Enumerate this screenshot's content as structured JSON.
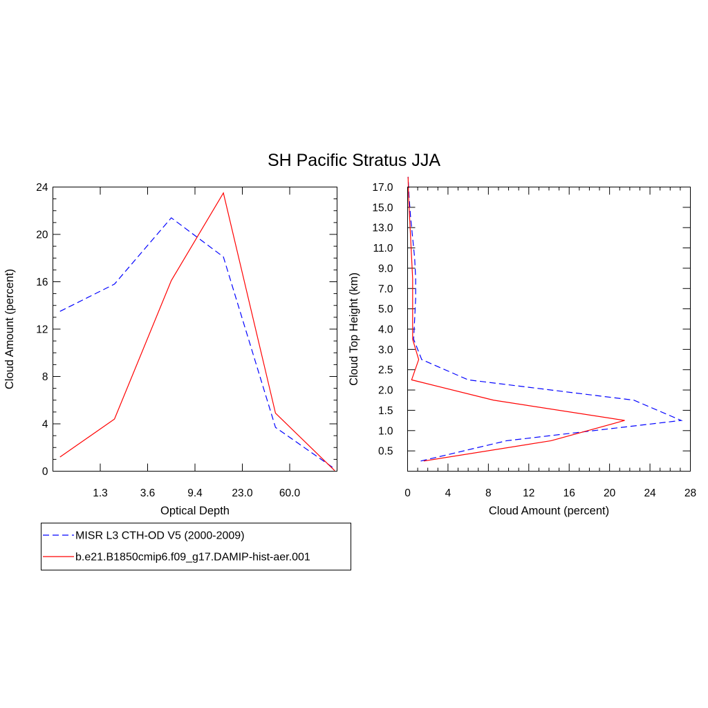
{
  "title": "SH Pacific Stratus JJA",
  "chart_data": [
    {
      "type": "line",
      "xlabel": "Optical Depth",
      "ylabel": "Cloud Amount (percent)",
      "x_tick_labels": [
        "1.3",
        "3.6",
        "9.4",
        "23.0",
        "60.0"
      ],
      "y_ticks": [
        0,
        4,
        8,
        12,
        16,
        20,
        24
      ],
      "ylim": [
        0,
        24
      ],
      "x": [
        0.15,
        1.3,
        2.5,
        3.6,
        4.7,
        5.95
      ],
      "series": [
        {
          "name": "MISR L3 CTH-OD V5 (2000-2009)",
          "color": "#0000ff",
          "dash": "dashed",
          "values": [
            13.5,
            15.8,
            21.4,
            18.1,
            3.7,
            0.2
          ]
        },
        {
          "name": "b.e21.B1850cmip6.f09_g17.DAMIP-hist-aer.001",
          "color": "#ff0000",
          "dash": "solid",
          "values": [
            1.2,
            4.4,
            16.1,
            23.5,
            4.9,
            0.05
          ]
        }
      ]
    },
    {
      "type": "line",
      "orientation": "horizontal",
      "xlabel": "Cloud Amount (percent)",
      "ylabel": "Cloud Top Height (km)",
      "x_ticks": [
        0,
        4,
        8,
        12,
        16,
        20,
        24,
        28
      ],
      "xlim": [
        0,
        28
      ],
      "y_tick_labels": [
        "0.5",
        "1.0",
        "1.5",
        "2.0",
        "2.5",
        "3.0",
        "4.0",
        "5.0",
        "7.0",
        "9.0",
        "11.0",
        "13.0",
        "15.0",
        "17.0"
      ],
      "y": [
        0.25,
        0.75,
        1.25,
        1.75,
        2.25,
        2.75,
        3.5,
        4.5,
        6.0,
        8.0,
        10.0,
        12.0,
        14.0,
        16.0,
        17.5
      ],
      "series": [
        {
          "name": "MISR L3 CTH-OD V5 (2000-2009)",
          "color": "#0000ff",
          "dash": "dashed",
          "values": [
            1.3,
            9.8,
            27.1,
            22.4,
            6.0,
            1.4,
            0.6,
            0.7,
            0.8,
            0.8,
            0.7,
            0.5,
            0.3,
            0.15,
            0.05
          ]
        },
        {
          "name": "b.e21.B1850cmip6.f09_g17.DAMIP-hist-aer.001",
          "color": "#ff0000",
          "dash": "solid",
          "values": [
            1.6,
            14.2,
            21.5,
            8.5,
            0.4,
            1.1,
            0.5,
            0.5,
            0.5,
            0.5,
            0.4,
            0.3,
            0.2,
            0.1,
            0.05
          ]
        }
      ]
    }
  ],
  "legend": {
    "entries": [
      {
        "label": "MISR L3 CTH-OD V5 (2000-2009)",
        "color": "#0000ff",
        "dash": "dashed"
      },
      {
        "label": "b.e21.B1850cmip6.f09_g17.DAMIP-hist-aer.001",
        "color": "#ff0000",
        "dash": "solid"
      }
    ]
  }
}
